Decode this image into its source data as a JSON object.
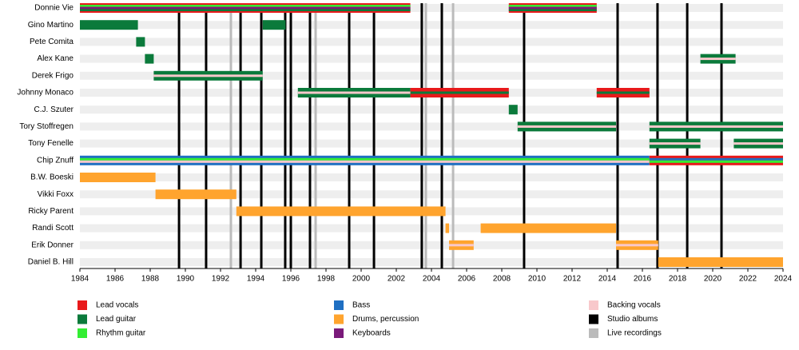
{
  "chart_data": {
    "type": "timeline",
    "xlim": [
      1984,
      2024
    ],
    "xticks": [
      1984,
      1986,
      1988,
      1990,
      1992,
      1994,
      1996,
      1998,
      2000,
      2002,
      2004,
      2006,
      2008,
      2010,
      2012,
      2014,
      2016,
      2018,
      2020,
      2022,
      2024
    ],
    "roles": [
      {
        "name": "Lead vocals",
        "color": "#e8191b"
      },
      {
        "name": "Lead guitar",
        "color": "#0b7a3b"
      },
      {
        "name": "Rhythm guitar",
        "color": "#33ee33"
      },
      {
        "name": "Bass",
        "color": "#1f6fc2"
      },
      {
        "name": "Drums, percussion",
        "color": "#ffa42e"
      },
      {
        "name": "Keyboards",
        "color": "#7a1a7a"
      },
      {
        "name": "Backing vocals",
        "color": "#f8c8cb"
      }
    ],
    "events": [
      {
        "name": "Studio albums",
        "color": "#000000",
        "dates": [
          1989.64,
          1991.18,
          1993.14,
          1994.32,
          1995.68,
          1996.0,
          1997.09,
          1999.32,
          2000.73,
          2003.45,
          2004.59,
          2009.27,
          2014.59,
          2016.86,
          2018.55,
          2020.5
        ]
      },
      {
        "name": "Live recordings",
        "color": "#bbbbbb",
        "dates": [
          1992.59,
          1997.41,
          2003.68,
          2005.23
        ]
      }
    ],
    "members": [
      {
        "name": "Donnie Vie",
        "segments": [
          {
            "start": 1984,
            "end": 2002.8,
            "roles": [
              "Lead vocals",
              "Rhythm guitar",
              "Keyboards",
              "Lead guitar"
            ]
          },
          {
            "start": 2008.4,
            "end": 2013.4,
            "roles": [
              "Lead vocals",
              "Rhythm guitar",
              "Keyboards",
              "Lead guitar"
            ]
          }
        ]
      },
      {
        "name": "Gino Martino",
        "segments": [
          {
            "start": 1984,
            "end": 1987.3,
            "roles": [
              "Lead guitar"
            ]
          },
          {
            "start": 1994.4,
            "end": 1995.7,
            "roles": [
              "Lead guitar"
            ]
          }
        ]
      },
      {
        "name": "Pete Comita",
        "segments": [
          {
            "start": 1987.2,
            "end": 1987.7,
            "roles": [
              "Lead guitar"
            ]
          }
        ]
      },
      {
        "name": "Alex Kane",
        "segments": [
          {
            "start": 1987.7,
            "end": 1988.2,
            "roles": [
              "Lead guitar"
            ]
          },
          {
            "start": 2019.3,
            "end": 2021.3,
            "roles": [
              "Lead guitar",
              "Backing vocals"
            ]
          }
        ]
      },
      {
        "name": "Derek Frigo",
        "segments": [
          {
            "start": 1988.2,
            "end": 1994.4,
            "roles": [
              "Lead guitar",
              "Backing vocals"
            ]
          }
        ]
      },
      {
        "name": "Johnny Monaco",
        "segments": [
          {
            "start": 1996.4,
            "end": 2002.8,
            "roles": [
              "Lead guitar",
              "Backing vocals"
            ]
          },
          {
            "start": 2002.8,
            "end": 2008.4,
            "roles": [
              "Lead vocals",
              "Lead guitar"
            ]
          },
          {
            "start": 2013.4,
            "end": 2016.4,
            "roles": [
              "Lead vocals",
              "Lead guitar"
            ]
          }
        ]
      },
      {
        "name": "C.J. Szuter",
        "segments": [
          {
            "start": 2008.4,
            "end": 2008.9,
            "roles": [
              "Lead guitar"
            ]
          }
        ]
      },
      {
        "name": "Tory Stoffregen",
        "segments": [
          {
            "start": 2008.9,
            "end": 2014.5,
            "roles": [
              "Lead guitar",
              "Backing vocals"
            ]
          },
          {
            "start": 2016.4,
            "end": 2024,
            "roles": [
              "Lead guitar",
              "Backing vocals"
            ]
          }
        ]
      },
      {
        "name": "Tony Fenelle",
        "segments": [
          {
            "start": 2016.4,
            "end": 2019.3,
            "roles": [
              "Lead guitar",
              "Backing vocals"
            ]
          },
          {
            "start": 2021.2,
            "end": 2024,
            "roles": [
              "Lead guitar",
              "Backing vocals"
            ]
          }
        ]
      },
      {
        "name": "Chip Znuff",
        "segments": [
          {
            "start": 1984,
            "end": 2016.4,
            "roles": [
              "Bass",
              "Rhythm guitar",
              "Backing vocals"
            ]
          },
          {
            "start": 2016.4,
            "end": 2024,
            "roles": [
              "Lead vocals",
              "Bass",
              "Rhythm guitar"
            ]
          }
        ]
      },
      {
        "name": "B.W. Boeski",
        "segments": [
          {
            "start": 1984,
            "end": 1988.3,
            "roles": [
              "Drums, percussion"
            ]
          }
        ]
      },
      {
        "name": "Vikki Foxx",
        "segments": [
          {
            "start": 1988.3,
            "end": 1992.9,
            "roles": [
              "Drums, percussion"
            ]
          }
        ]
      },
      {
        "name": "Ricky Parent",
        "segments": [
          {
            "start": 1992.9,
            "end": 2004.8,
            "roles": [
              "Drums, percussion"
            ]
          }
        ]
      },
      {
        "name": "Randi Scott",
        "segments": [
          {
            "start": 2004.8,
            "end": 2005.0,
            "roles": [
              "Drums, percussion"
            ]
          },
          {
            "start": 2006.8,
            "end": 2014.5,
            "roles": [
              "Drums, percussion"
            ]
          }
        ]
      },
      {
        "name": "Erik Donner",
        "segments": [
          {
            "start": 2005.0,
            "end": 2006.4,
            "roles": [
              "Drums, percussion",
              "Backing vocals"
            ]
          },
          {
            "start": 2014.5,
            "end": 2016.9,
            "roles": [
              "Drums, percussion",
              "Backing vocals"
            ]
          }
        ]
      },
      {
        "name": "Daniel B. Hill",
        "segments": [
          {
            "start": 2016.9,
            "end": 2024,
            "roles": [
              "Drums, percussion"
            ]
          }
        ]
      }
    ]
  }
}
